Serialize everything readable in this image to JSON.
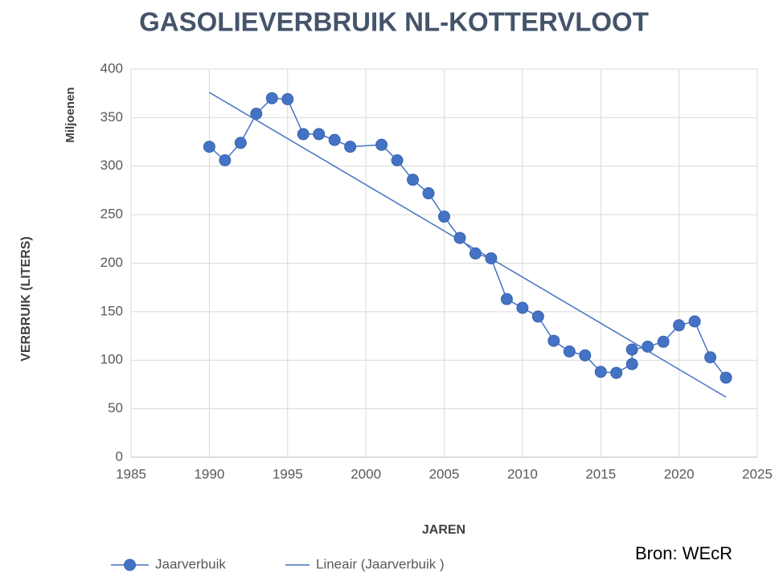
{
  "chart_data": {
    "type": "line",
    "title": "GASOLIEVERBRUIK NL-KOTTERVLOOT",
    "xlabel": "JAREN",
    "ylabel": "VERBRUIK (LITERS)",
    "yunit": "Miljoenen",
    "source": "Bron: WEcR",
    "xlim": [
      1985,
      2025
    ],
    "xticks": [
      1985,
      1990,
      1995,
      2000,
      2005,
      2010,
      2015,
      2020,
      2025
    ],
    "ylim": [
      0,
      400
    ],
    "yticks": [
      0,
      50,
      100,
      150,
      200,
      250,
      300,
      350,
      400
    ],
    "grid": true,
    "legend": "bottom",
    "series": [
      {
        "name": "Jaarverbuik",
        "color": "#4472c4",
        "markers": true,
        "x": [
          1990,
          1991,
          1992,
          1993,
          1994,
          1995,
          1996,
          1997,
          1998,
          1999,
          2001,
          2002,
          2003,
          2004,
          2005,
          2006,
          2007,
          2008,
          2009,
          2010,
          2011,
          2012,
          2013,
          2014,
          2015,
          2016,
          2017,
          2017,
          2018,
          2019,
          2020,
          2021,
          2022,
          2023
        ],
        "values": [
          320,
          306,
          324,
          354,
          370,
          369,
          333,
          333,
          327,
          320,
          322,
          306,
          286,
          272,
          248,
          226,
          210,
          205,
          163,
          154,
          145,
          120,
          109,
          105,
          88,
          87,
          96,
          111,
          114,
          119,
          136,
          140,
          103,
          82
        ]
      },
      {
        "name": "Lineair (Jaarverbuik )",
        "color": "#4472c4",
        "markers": false,
        "x": [
          1990,
          2023
        ],
        "values": [
          376,
          62
        ]
      }
    ]
  }
}
